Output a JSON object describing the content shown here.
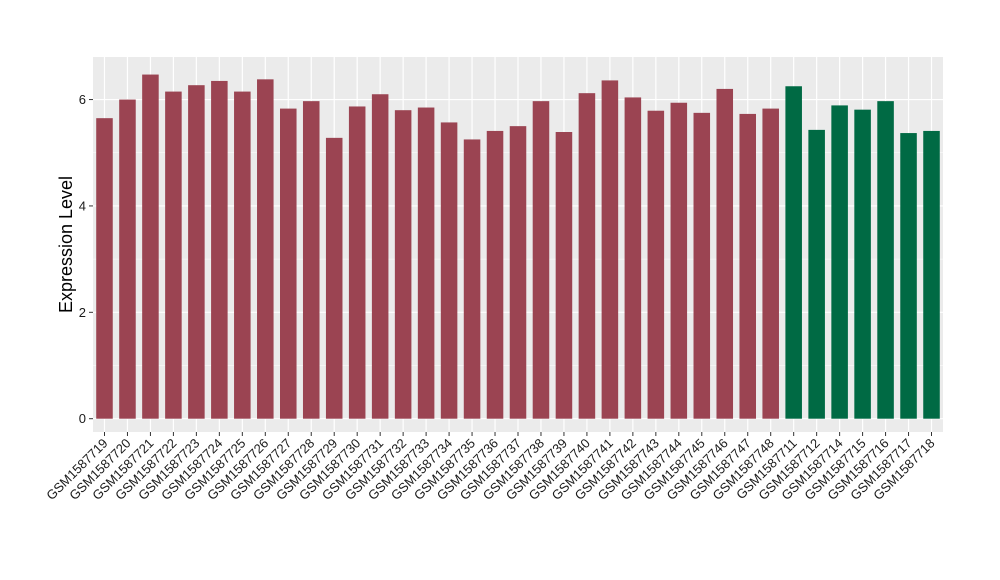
{
  "chart_data": {
    "type": "bar",
    "title": "",
    "xlabel": "",
    "ylabel": "Expression Level",
    "ylim": [
      -0.25,
      6.8
    ],
    "yticks": [
      0,
      2,
      4,
      6
    ],
    "grid": true,
    "legend": "none",
    "panel_background": "#ebebeb",
    "grid_color": "#ffffff",
    "categories": [
      "GSM1587719",
      "GSM1587720",
      "GSM1587721",
      "GSM1587722",
      "GSM1587723",
      "GSM1587724",
      "GSM1587725",
      "GSM1587726",
      "GSM1587727",
      "GSM1587728",
      "GSM1587729",
      "GSM1587730",
      "GSM1587731",
      "GSM1587732",
      "GSM1587733",
      "GSM1587734",
      "GSM1587735",
      "GSM1587736",
      "GSM1587737",
      "GSM1587738",
      "GSM1587739",
      "GSM1587740",
      "GSM1587741",
      "GSM1587742",
      "GSM1587743",
      "GSM1587744",
      "GSM1587745",
      "GSM1587746",
      "GSM1587747",
      "GSM1587748",
      "GSM1587711",
      "GSM1587712",
      "GSM1587714",
      "GSM1587715",
      "GSM1587716",
      "GSM1587717",
      "GSM1587718"
    ],
    "values": [
      5.65,
      6.0,
      6.47,
      6.15,
      6.27,
      6.35,
      6.15,
      6.38,
      5.83,
      5.97,
      5.28,
      5.87,
      6.1,
      5.8,
      5.85,
      5.57,
      5.25,
      5.41,
      5.5,
      5.97,
      5.39,
      6.12,
      6.36,
      6.04,
      5.79,
      5.94,
      5.75,
      6.2,
      5.73,
      5.83,
      6.25,
      5.43,
      5.89,
      5.81,
      5.97,
      5.37,
      5.41
    ],
    "colors": [
      "#9b4452",
      "#9b4452",
      "#9b4452",
      "#9b4452",
      "#9b4452",
      "#9b4452",
      "#9b4452",
      "#9b4452",
      "#9b4452",
      "#9b4452",
      "#9b4452",
      "#9b4452",
      "#9b4452",
      "#9b4452",
      "#9b4452",
      "#9b4452",
      "#9b4452",
      "#9b4452",
      "#9b4452",
      "#9b4452",
      "#9b4452",
      "#9b4452",
      "#9b4452",
      "#9b4452",
      "#9b4452",
      "#9b4452",
      "#9b4452",
      "#9b4452",
      "#9b4452",
      "#9b4452",
      "#006a44",
      "#006a44",
      "#006a44",
      "#006a44",
      "#006a44",
      "#006a44",
      "#006a44"
    ]
  }
}
